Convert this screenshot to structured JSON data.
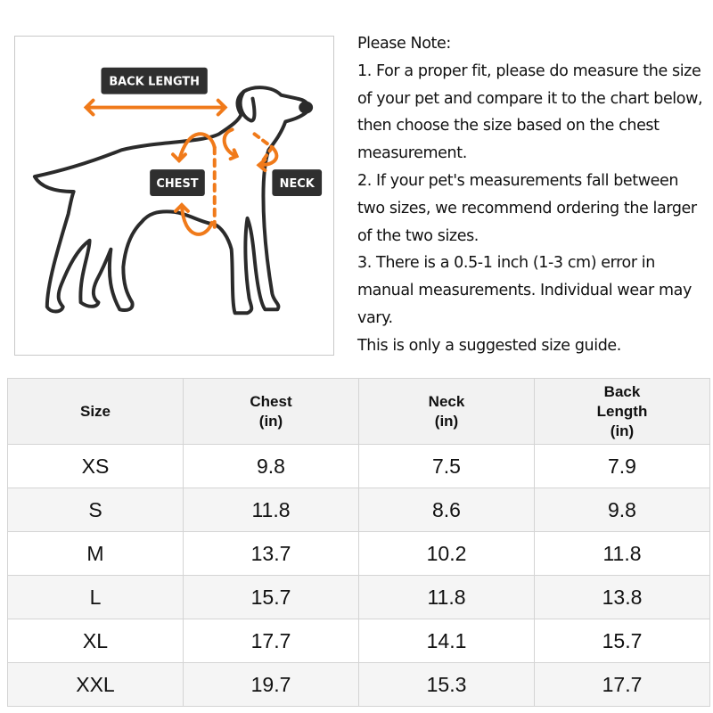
{
  "figure": {
    "labels": {
      "back_length": "BACK LENGTH",
      "chest": "CHEST",
      "neck": "NECK"
    },
    "accent_color": "#f07a1a",
    "outline_color": "#2b2b2b"
  },
  "note": {
    "lines": [
      "Please Note:",
      "1. For a proper fit, please do measure the size of your pet and compare it to the chart below, then choose the size based on the chest measurement.",
      "2. If your pet's measurements fall between two sizes, we recommend ordering the larger of the two sizes.",
      "3. There is a 0.5-1 inch (1-3 cm) error in manual measurements. Individual wear may vary.",
      "This is only a suggested size guide."
    ]
  },
  "table": {
    "headers": [
      [
        "Size"
      ],
      [
        "Chest",
        "(in)"
      ],
      [
        "Neck",
        "(in)"
      ],
      [
        "Back",
        "Length",
        "(in)"
      ]
    ],
    "rows": [
      [
        "XS",
        "9.8",
        "7.5",
        "7.9"
      ],
      [
        "S",
        "11.8",
        "8.6",
        "9.8"
      ],
      [
        "M",
        "13.7",
        "10.2",
        "11.8"
      ],
      [
        "L",
        "15.7",
        "11.8",
        "13.8"
      ],
      [
        "XL",
        "17.7",
        "14.1",
        "15.7"
      ],
      [
        "XXL",
        "19.7",
        "15.3",
        "17.7"
      ]
    ]
  }
}
